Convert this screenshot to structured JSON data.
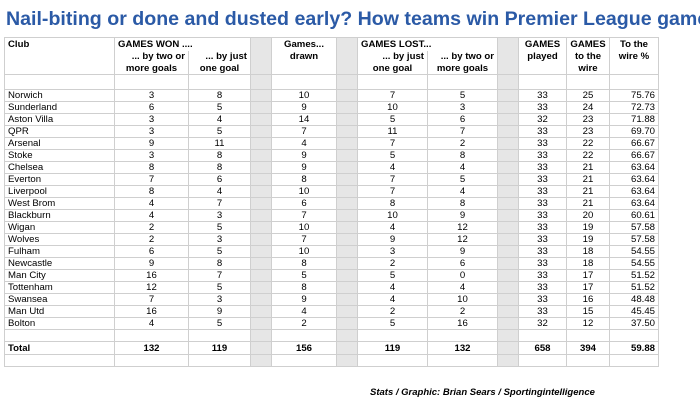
{
  "title": "Nail-biting or done and dusted early? How teams win Premier League games",
  "headers": {
    "club": "Club",
    "games_won": "GAMES WON ....",
    "won_two": "... by two or",
    "won_two_2": "more goals",
    "won_one": "... by just",
    "won_one_2": "one goal",
    "drawn": "Games...",
    "drawn_2": "drawn",
    "games_lost": "GAMES LOST...",
    "lost_one": "... by just",
    "lost_one_2": "one goal",
    "lost_two": "... by two or",
    "lost_two_2": "more goals",
    "played": "GAMES",
    "played_2": "played",
    "wire": "GAMES",
    "wire_2": "to the",
    "wire_3": "wire",
    "wire_pct": "To the",
    "wire_pct_2": "wire %"
  },
  "rows": [
    {
      "club": "Norwich",
      "won_two": "3",
      "won_one": "8",
      "drawn": "10",
      "lost_one": "7",
      "lost_two": "5",
      "played": "33",
      "wire": "25",
      "pct": "75.76"
    },
    {
      "club": "Sunderland",
      "won_two": "6",
      "won_one": "5",
      "drawn": "9",
      "lost_one": "10",
      "lost_two": "3",
      "played": "33",
      "wire": "24",
      "pct": "72.73"
    },
    {
      "club": "Aston Villa",
      "won_two": "3",
      "won_one": "4",
      "drawn": "14",
      "lost_one": "5",
      "lost_two": "6",
      "played": "32",
      "wire": "23",
      "pct": "71.88"
    },
    {
      "club": "QPR",
      "won_two": "3",
      "won_one": "5",
      "drawn": "7",
      "lost_one": "11",
      "lost_two": "7",
      "played": "33",
      "wire": "23",
      "pct": "69.70"
    },
    {
      "club": "Arsenal",
      "won_two": "9",
      "won_one": "11",
      "drawn": "4",
      "lost_one": "7",
      "lost_two": "2",
      "played": "33",
      "wire": "22",
      "pct": "66.67"
    },
    {
      "club": "Stoke",
      "won_two": "3",
      "won_one": "8",
      "drawn": "9",
      "lost_one": "5",
      "lost_two": "8",
      "played": "33",
      "wire": "22",
      "pct": "66.67"
    },
    {
      "club": "Chelsea",
      "won_two": "8",
      "won_one": "8",
      "drawn": "9",
      "lost_one": "4",
      "lost_two": "4",
      "played": "33",
      "wire": "21",
      "pct": "63.64"
    },
    {
      "club": "Everton",
      "won_two": "7",
      "won_one": "6",
      "drawn": "8",
      "lost_one": "7",
      "lost_two": "5",
      "played": "33",
      "wire": "21",
      "pct": "63.64"
    },
    {
      "club": "Liverpool",
      "won_two": "8",
      "won_one": "4",
      "drawn": "10",
      "lost_one": "7",
      "lost_two": "4",
      "played": "33",
      "wire": "21",
      "pct": "63.64"
    },
    {
      "club": "West Brom",
      "won_two": "4",
      "won_one": "7",
      "drawn": "6",
      "lost_one": "8",
      "lost_two": "8",
      "played": "33",
      "wire": "21",
      "pct": "63.64"
    },
    {
      "club": "Blackburn",
      "won_two": "4",
      "won_one": "3",
      "drawn": "7",
      "lost_one": "10",
      "lost_two": "9",
      "played": "33",
      "wire": "20",
      "pct": "60.61"
    },
    {
      "club": "Wigan",
      "won_two": "2",
      "won_one": "5",
      "drawn": "10",
      "lost_one": "4",
      "lost_two": "12",
      "played": "33",
      "wire": "19",
      "pct": "57.58"
    },
    {
      "club": "Wolves",
      "won_two": "2",
      "won_one": "3",
      "drawn": "7",
      "lost_one": "9",
      "lost_two": "12",
      "played": "33",
      "wire": "19",
      "pct": "57.58"
    },
    {
      "club": "Fulham",
      "won_two": "6",
      "won_one": "5",
      "drawn": "10",
      "lost_one": "3",
      "lost_two": "9",
      "played": "33",
      "wire": "18",
      "pct": "54.55"
    },
    {
      "club": "Newcastle",
      "won_two": "9",
      "won_one": "8",
      "drawn": "8",
      "lost_one": "2",
      "lost_two": "6",
      "played": "33",
      "wire": "18",
      "pct": "54.55"
    },
    {
      "club": "Man City",
      "won_two": "16",
      "won_one": "7",
      "drawn": "5",
      "lost_one": "5",
      "lost_two": "0",
      "played": "33",
      "wire": "17",
      "pct": "51.52"
    },
    {
      "club": "Tottenham",
      "won_two": "12",
      "won_one": "5",
      "drawn": "8",
      "lost_one": "4",
      "lost_two": "4",
      "played": "33",
      "wire": "17",
      "pct": "51.52"
    },
    {
      "club": "Swansea",
      "won_two": "7",
      "won_one": "3",
      "drawn": "9",
      "lost_one": "4",
      "lost_two": "10",
      "played": "33",
      "wire": "16",
      "pct": "48.48"
    },
    {
      "club": "Man Utd",
      "won_two": "16",
      "won_one": "9",
      "drawn": "4",
      "lost_one": "2",
      "lost_two": "2",
      "played": "33",
      "wire": "15",
      "pct": "45.45"
    },
    {
      "club": "Bolton",
      "won_two": "4",
      "won_one": "5",
      "drawn": "2",
      "lost_one": "5",
      "lost_two": "16",
      "played": "32",
      "wire": "12",
      "pct": "37.50"
    }
  ],
  "total": {
    "club": "Total",
    "won_two": "132",
    "won_one": "119",
    "drawn": "156",
    "lost_one": "119",
    "lost_two": "132",
    "played": "658",
    "wire": "394",
    "pct": "59.88"
  },
  "credit": "Stats / Graphic: Brian Sears / Sportingintelligence"
}
